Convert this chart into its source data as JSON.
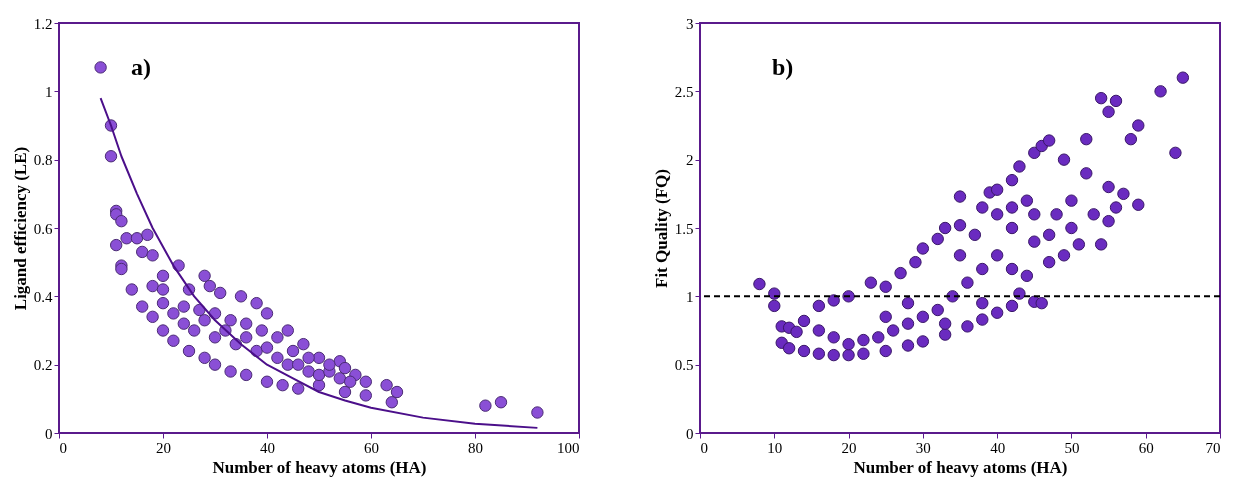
{
  "chart_data": [
    {
      "type": "scatter",
      "xlabel": "Number of heavy atoms (HA)",
      "ylabel": "Ligand efficiency (LE)",
      "annotations": [
        "a)"
      ],
      "xlim": [
        0,
        100
      ],
      "xticks": [
        0,
        20,
        40,
        60,
        80,
        100
      ],
      "ylim": [
        0,
        1.2
      ],
      "yticks": [
        0,
        0.2,
        0.4,
        0.6,
        0.8,
        1,
        1.2
      ],
      "grid": false,
      "legend": false,
      "marker": "circle",
      "series": [
        {
          "color": "#8a4fd6",
          "x": [
            8,
            10,
            10,
            11,
            11,
            12,
            11,
            13,
            12,
            15,
            17,
            16,
            18,
            20,
            23,
            25,
            28,
            29,
            31,
            35,
            38,
            40,
            44,
            47,
            50,
            54,
            57,
            59,
            63,
            65,
            64,
            82,
            85,
            92,
            12,
            14,
            16,
            18,
            20,
            22,
            25,
            28,
            30,
            33,
            36,
            40,
            43,
            46,
            50,
            55,
            59,
            18,
            20,
            22,
            24,
            26,
            28,
            30,
            32,
            34,
            36,
            38,
            40,
            42,
            44,
            46,
            48,
            50,
            52,
            54,
            56,
            20,
            24,
            27,
            30,
            33,
            36,
            39,
            42,
            45,
            48,
            52,
            55
          ],
          "values": [
            1.07,
            0.9,
            0.81,
            0.65,
            0.64,
            0.62,
            0.55,
            0.57,
            0.49,
            0.57,
            0.58,
            0.53,
            0.52,
            0.46,
            0.49,
            0.42,
            0.46,
            0.43,
            0.41,
            0.4,
            0.38,
            0.35,
            0.3,
            0.26,
            0.22,
            0.21,
            0.17,
            0.15,
            0.14,
            0.12,
            0.09,
            0.08,
            0.09,
            0.06,
            0.48,
            0.42,
            0.37,
            0.34,
            0.3,
            0.27,
            0.24,
            0.22,
            0.2,
            0.18,
            0.17,
            0.15,
            0.14,
            0.13,
            0.14,
            0.12,
            0.11,
            0.43,
            0.38,
            0.35,
            0.32,
            0.3,
            0.33,
            0.28,
            0.3,
            0.26,
            0.28,
            0.24,
            0.25,
            0.22,
            0.2,
            0.2,
            0.18,
            0.17,
            0.18,
            0.16,
            0.15,
            0.42,
            0.37,
            0.36,
            0.35,
            0.33,
            0.32,
            0.3,
            0.28,
            0.24,
            0.22,
            0.2,
            0.19
          ]
        },
        {
          "type": "line",
          "marker": "none",
          "color": "#4b0f8a",
          "x": [
            8,
            10,
            12,
            15,
            18,
            22,
            26,
            30,
            35,
            40,
            45,
            50,
            55,
            60,
            70,
            80,
            92
          ],
          "values": [
            0.98,
            0.9,
            0.81,
            0.7,
            0.6,
            0.49,
            0.4,
            0.33,
            0.26,
            0.2,
            0.16,
            0.12,
            0.095,
            0.074,
            0.045,
            0.027,
            0.015
          ]
        }
      ]
    },
    {
      "type": "scatter",
      "xlabel": "Number of heavy atoms (HA)",
      "ylabel": "Fit Quality (FQ)",
      "annotations": [
        "b)"
      ],
      "xlim": [
        0,
        70
      ],
      "xticks": [
        0,
        10,
        20,
        30,
        40,
        50,
        60,
        70
      ],
      "ylim": [
        0,
        3
      ],
      "yticks": [
        0,
        0.5,
        1,
        1.5,
        2,
        2.5,
        3
      ],
      "grid": false,
      "legend": false,
      "marker": "circle",
      "ref_lines": [
        {
          "axis": "y",
          "value": 1,
          "color": "#000000",
          "line_style": "dashed"
        }
      ],
      "series": [
        {
          "color": "#6a2bc0",
          "x": [
            8,
            10,
            10,
            11,
            12,
            13,
            11,
            12,
            14,
            16,
            18,
            20,
            22,
            25,
            28,
            30,
            33,
            36,
            38,
            40,
            42,
            45,
            46,
            14,
            16,
            18,
            20,
            23,
            25,
            27,
            29,
            30,
            32,
            33,
            35,
            35,
            38,
            39,
            40,
            42,
            43,
            45,
            46,
            47,
            49,
            52,
            54,
            55,
            56,
            58,
            59,
            62,
            65,
            64,
            59,
            56,
            54,
            51,
            49,
            47,
            44,
            43,
            48,
            50,
            52,
            55,
            57,
            53,
            55,
            50,
            45,
            42,
            40,
            38,
            36,
            34,
            32,
            30,
            28,
            26,
            24,
            22,
            20,
            18,
            16,
            35,
            37,
            40,
            45,
            47,
            42,
            38,
            33,
            28,
            25,
            44,
            42
          ],
          "values": [
            1.09,
            1.02,
            0.93,
            0.78,
            0.77,
            0.74,
            0.66,
            0.62,
            0.6,
            0.58,
            0.57,
            0.57,
            0.58,
            0.6,
            0.64,
            0.67,
            0.72,
            0.78,
            0.83,
            0.88,
            0.93,
            0.96,
            0.95,
            0.82,
            0.93,
            0.97,
            1.0,
            1.1,
            1.07,
            1.17,
            1.25,
            1.35,
            1.42,
            1.5,
            1.52,
            1.73,
            1.65,
            1.76,
            1.78,
            1.85,
            1.95,
            2.05,
            2.1,
            2.14,
            2.0,
            2.15,
            2.45,
            2.35,
            2.43,
            2.15,
            2.25,
            2.5,
            2.6,
            2.05,
            1.67,
            1.65,
            1.38,
            1.38,
            1.3,
            1.25,
            1.15,
            1.02,
            1.6,
            1.7,
            1.9,
            1.8,
            1.75,
            1.6,
            1.55,
            1.5,
            1.6,
            1.5,
            1.3,
            1.2,
            1.1,
            1.0,
            0.9,
            0.85,
            0.8,
            0.75,
            0.7,
            0.68,
            0.65,
            0.7,
            0.75,
            1.3,
            1.45,
            1.6,
            1.4,
            1.45,
            1.2,
            0.95,
            0.8,
            0.95,
            0.85,
            1.7,
            1.65
          ]
        }
      ]
    }
  ]
}
